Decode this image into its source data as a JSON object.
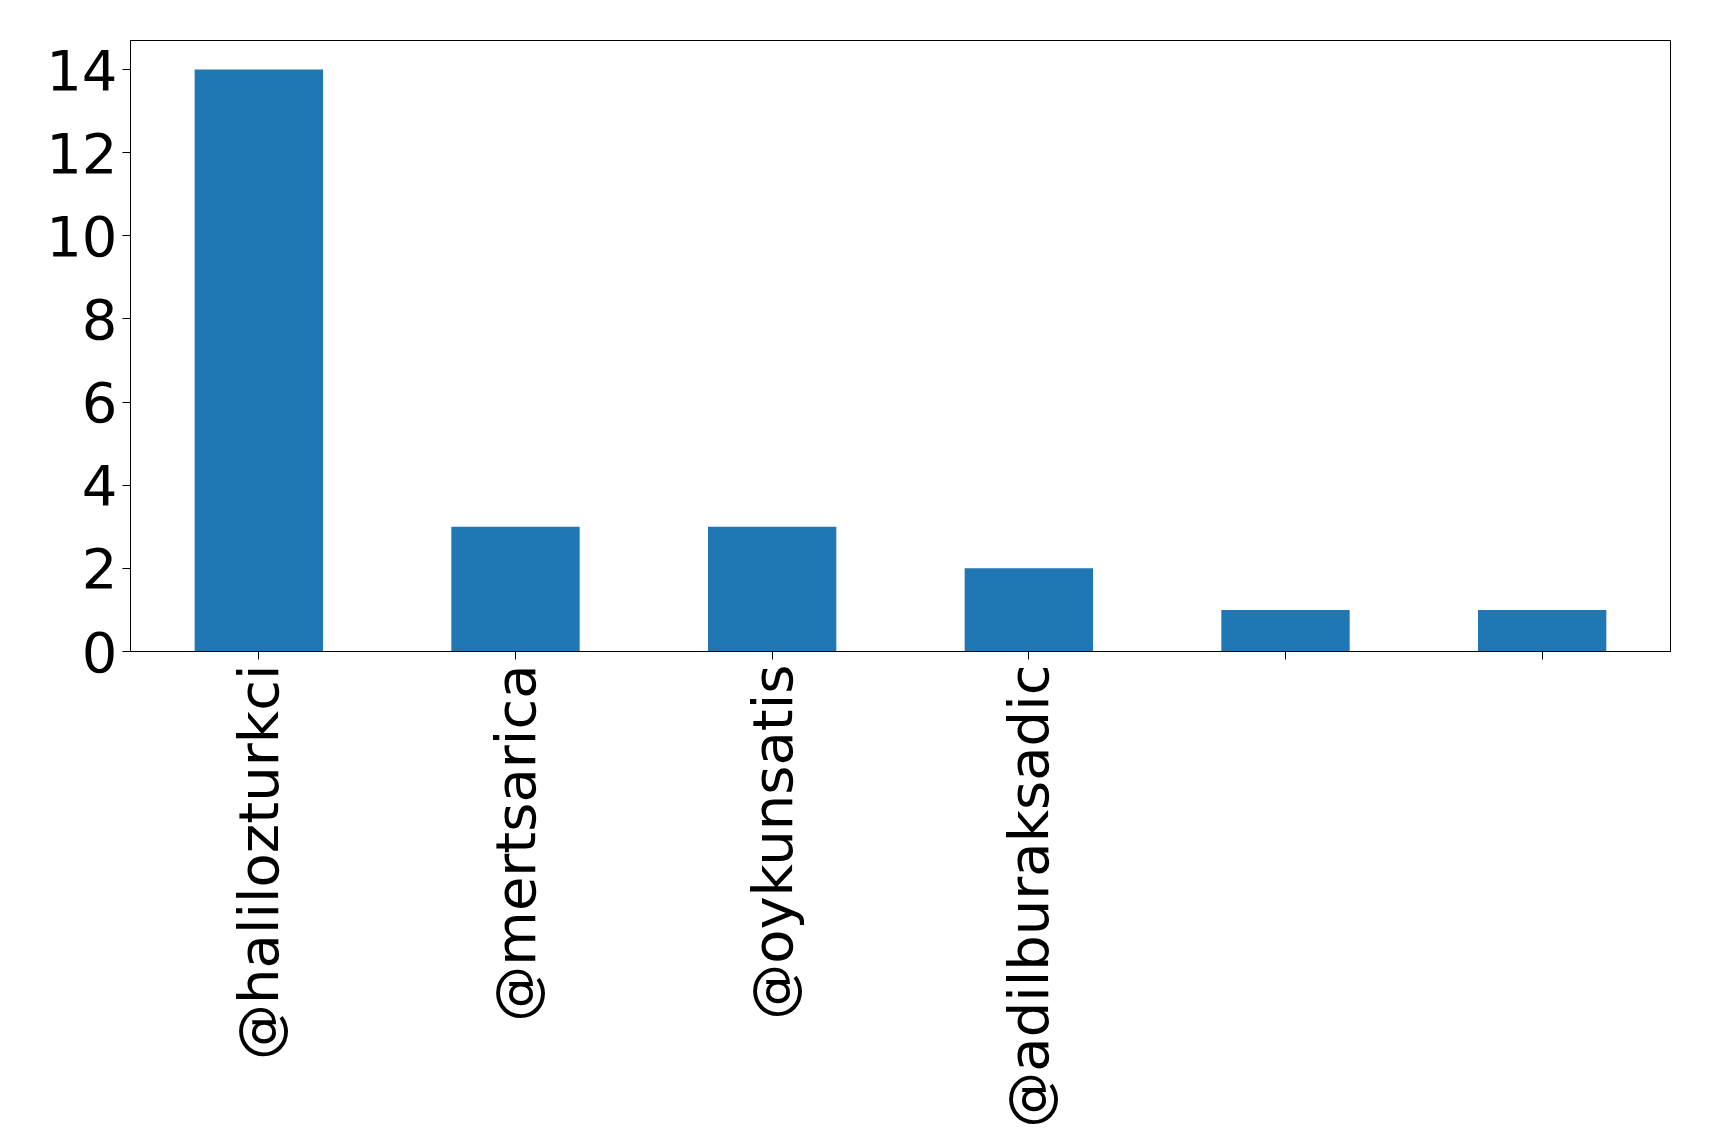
{
  "chart_data": {
    "type": "bar",
    "categories": [
      "@halilozturkci",
      "@mertsarica",
      "@oykunsatis",
      "@adilburaksadic",
      null,
      null
    ],
    "values": [
      14,
      3,
      3,
      2,
      1,
      1
    ],
    "color": "#1f77b4",
    "ylim": [
      0,
      14.7
    ],
    "yticks": [
      0,
      2,
      4,
      6,
      8,
      10,
      12,
      14
    ],
    "grid": false
  }
}
